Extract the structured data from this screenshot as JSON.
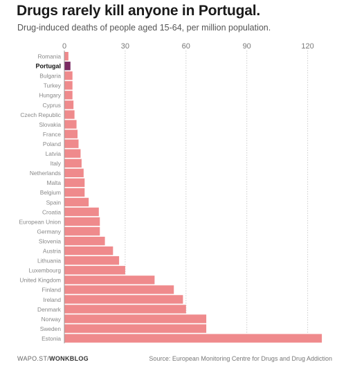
{
  "header": {
    "title": "Drugs rarely kill anyone in Portugal.",
    "subtitle": "Drug-induced deaths of people aged 15-64, per million population."
  },
  "footer": {
    "credit_prefix": "WAPO.ST/",
    "credit_brand": "WONKBLOG",
    "source": "Source: European Monitoring Centre for Drugs and Drug Addiction"
  },
  "colors": {
    "bar": "#ef8a8c",
    "highlight": "#7a2a62",
    "grid": "#cccccc",
    "label": "#888888",
    "highlight_label": "#111111"
  },
  "chart_data": {
    "type": "bar",
    "orientation": "horizontal",
    "categories": [
      "Romania",
      "Portugal",
      "Bulgaria",
      "Turkey",
      "Hungary",
      "Cyprus",
      "Czech Republic",
      "Slovakia",
      "France",
      "Poland",
      "Latvia",
      "Italy",
      "Netherlands",
      "Malta",
      "Belgium",
      "Spain",
      "Croatia",
      "European Union",
      "Germany",
      "Slovenia",
      "Austria",
      "Lithuania",
      "Luxembourg",
      "United Kingdom",
      "Finland",
      "Ireland",
      "Denmark",
      "Norway",
      "Sweden",
      "Estonia"
    ],
    "values": [
      2,
      3,
      4,
      4,
      4,
      4.5,
      5,
      6,
      6.5,
      7,
      8,
      8.5,
      9.5,
      10,
      10,
      12,
      17,
      17.5,
      17.5,
      20,
      24,
      27,
      30,
      44.5,
      54,
      58.5,
      60,
      70,
      70,
      127
    ],
    "highlight": "Portugal",
    "xlim": [
      0,
      130
    ],
    "xticks": [
      0,
      30,
      60,
      90,
      120
    ],
    "grid": true,
    "xlabel": "",
    "ylabel": ""
  }
}
